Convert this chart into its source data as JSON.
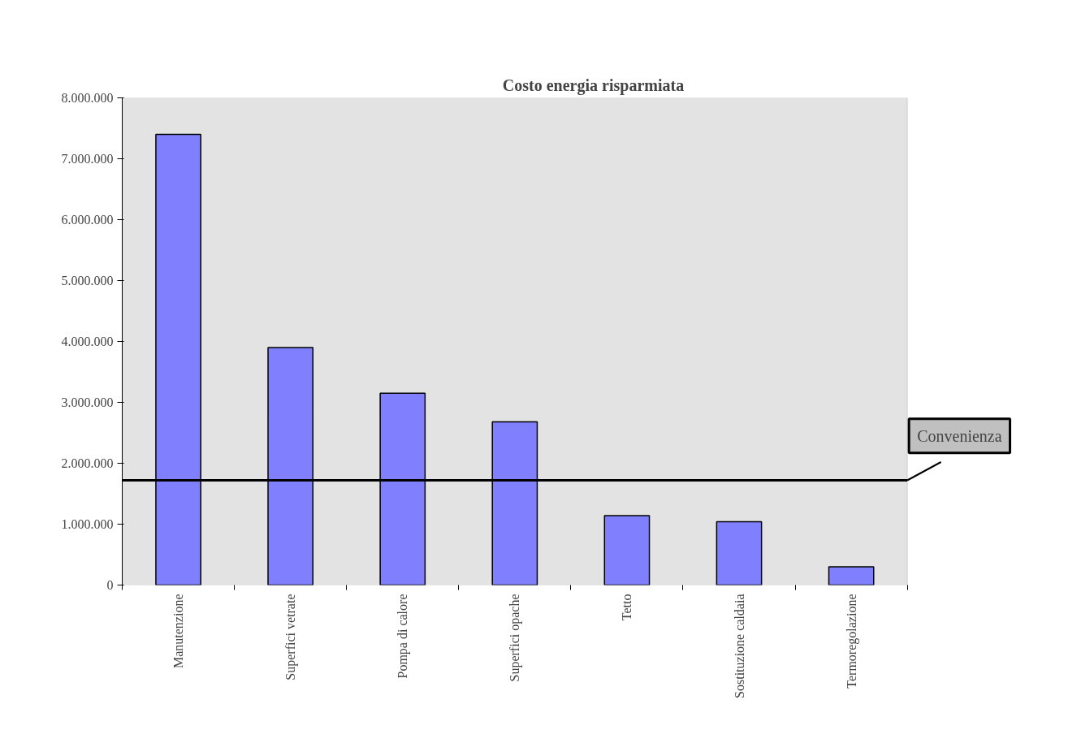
{
  "chart_data": {
    "type": "bar",
    "title": "Costo energia risparmiata",
    "categories": [
      "Manutenzione",
      "Superfici vetrate",
      "Pompa di calore",
      "Superfici opache",
      "Tetto",
      "Sostituzione caldaia",
      "Termoregolazione"
    ],
    "values": [
      7400000,
      3900000,
      3150000,
      2680000,
      1140000,
      1040000,
      300000
    ],
    "color": "#8080ff",
    "ylim": [
      0,
      8000000
    ],
    "yticks": [
      {
        "value": 0,
        "label": "0"
      },
      {
        "value": 1000000,
        "label": "1.000.000"
      },
      {
        "value": 2000000,
        "label": "2.000.000"
      },
      {
        "value": 3000000,
        "label": "3.000.000"
      },
      {
        "value": 4000000,
        "label": "4.000.000"
      },
      {
        "value": 5000000,
        "label": "5.000.000"
      },
      {
        "value": 6000000,
        "label": "6.000.000"
      },
      {
        "value": 7000000,
        "label": "7.000.000"
      },
      {
        "value": 8000000,
        "label": "8.000.000"
      }
    ],
    "ref_lines": [
      {
        "axis": "y",
        "value": 1720000,
        "label": "Convenienza",
        "color": "#000000"
      }
    ],
    "grid": false
  }
}
